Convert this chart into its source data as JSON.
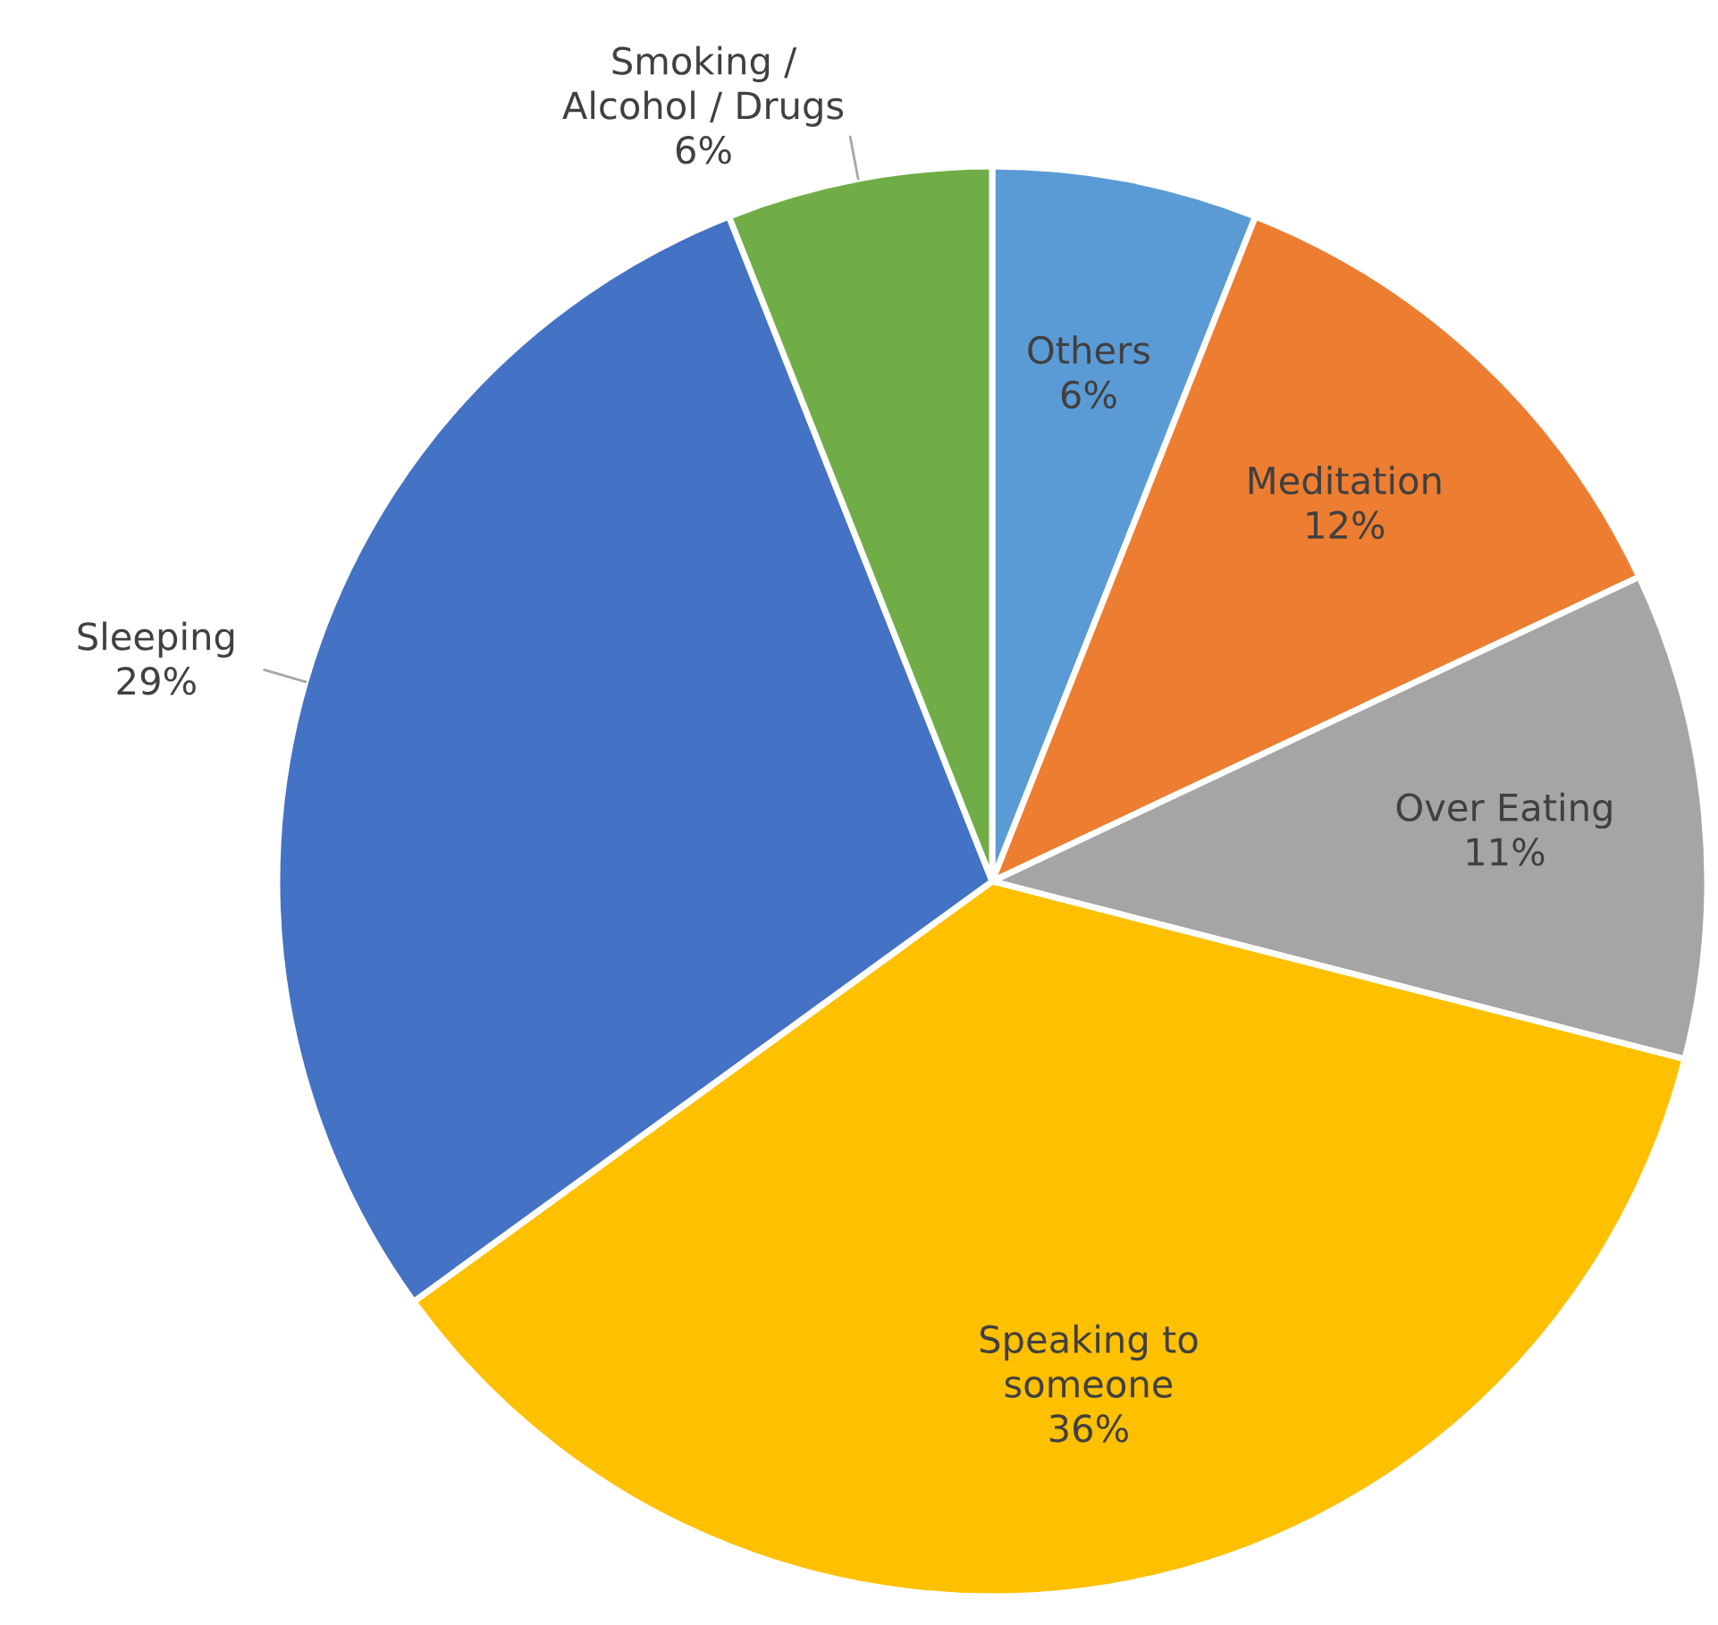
{
  "chart_data": {
    "type": "pie",
    "categories": [
      "Others",
      "Meditation",
      "Over Eating",
      "Speaking to someone",
      "Sleeping",
      "Smoking / Alcohol / Drugs"
    ],
    "values": [
      6,
      12,
      11,
      36,
      29,
      6
    ],
    "colors": [
      "#5b9bd5",
      "#ed7d31",
      "#a5a5a5",
      "#ffc000",
      "#4472c4",
      "#70ad47"
    ],
    "value_labels": [
      "6%",
      "12%",
      "11%",
      "36%",
      "29%",
      "6%"
    ],
    "legend": false
  }
}
